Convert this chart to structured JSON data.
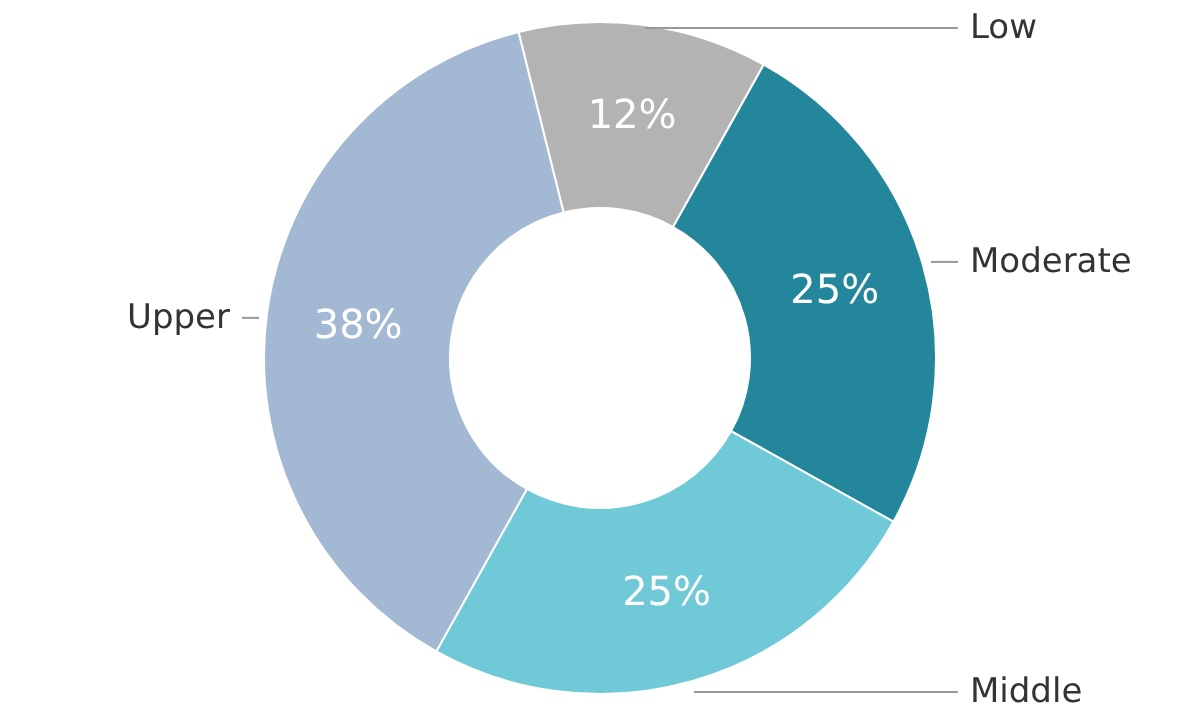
{
  "chart_data": {
    "type": "donut",
    "categories": [
      "Low",
      "Moderate",
      "Middle",
      "Upper"
    ],
    "values": [
      12,
      25,
      25,
      38
    ],
    "value_labels": [
      "12%",
      "25%",
      "25%",
      "38%"
    ],
    "colors": [
      "#b3b3b3",
      "#23869b",
      "#6fc9d6",
      "#a3b9d3"
    ]
  }
}
